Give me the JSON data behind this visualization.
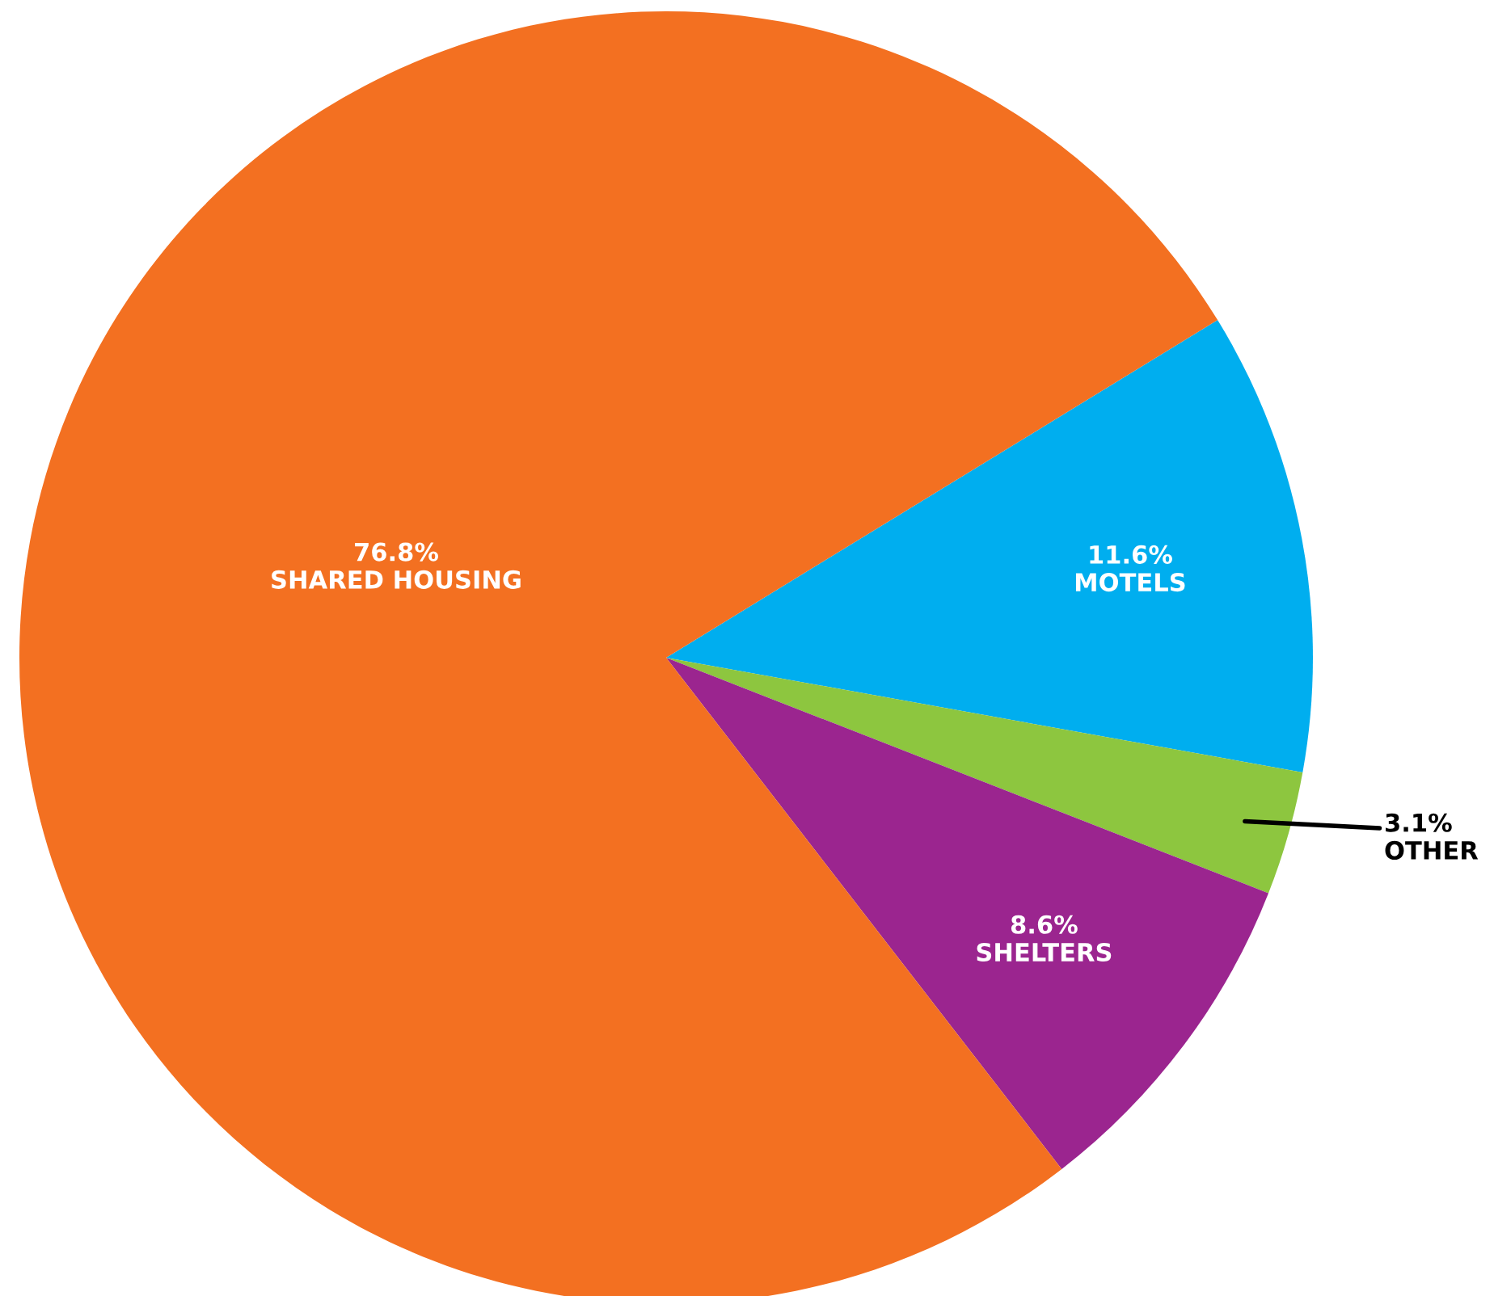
{
  "chart_data": {
    "type": "pie",
    "categories": [
      "MOTELS",
      "OTHER",
      "SHELTERS",
      "SHARED HOUSING"
    ],
    "values": [
      11.6,
      3.1,
      8.6,
      76.8
    ],
    "value_labels": [
      "11.6%",
      "3.1%",
      "8.6%",
      "76.8%"
    ],
    "colors": [
      "#00aeef",
      "#8dc63f",
      "#9b258f",
      "#f37021"
    ],
    "legend": false
  }
}
